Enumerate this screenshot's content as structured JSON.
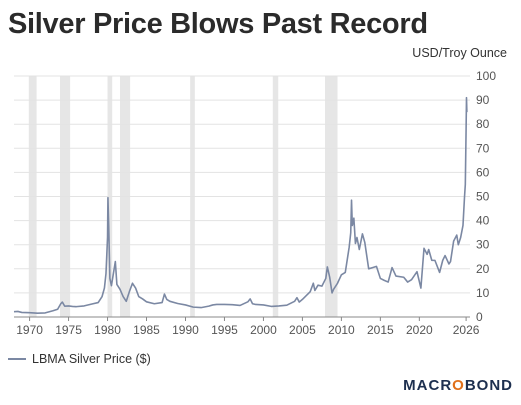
{
  "title": "Silver Price Blows Past Record",
  "unit_label": "USD/Troy Ounce",
  "legend_label": "LBMA Silver Price ($)",
  "logo": {
    "left": "MACR",
    "o": "O",
    "right": "BOND"
  },
  "colors": {
    "series": "#7b88a3",
    "recession": "#e6e6e6",
    "grid": "#e3e3e3",
    "axis": "#888888"
  },
  "chart_data": {
    "type": "line",
    "title": "Silver Price Blows Past Record",
    "ylabel": "USD/Troy Ounce",
    "xlim": [
      1968,
      2026.5
    ],
    "ylim": [
      0,
      100
    ],
    "grid": true,
    "legend_position": "bottom-left",
    "x_ticks": [
      1970,
      1975,
      1980,
      1985,
      1990,
      1995,
      2000,
      2005,
      2010,
      2015,
      2020,
      2026
    ],
    "y_ticks": [
      0,
      10,
      20,
      30,
      40,
      50,
      60,
      70,
      80,
      90,
      100
    ],
    "recession_bands": [
      [
        1969.9,
        1970.9
      ],
      [
        1973.9,
        1975.2
      ],
      [
        1980.0,
        1980.6
      ],
      [
        1981.6,
        1982.9
      ],
      [
        1990.6,
        1991.2
      ],
      [
        2001.2,
        2001.9
      ],
      [
        2007.9,
        2009.5
      ]
    ],
    "series": [
      {
        "name": "LBMA Silver Price ($)",
        "points": [
          [
            1968.0,
            2.2
          ],
          [
            1968.5,
            2.3
          ],
          [
            1969.0,
            1.9
          ],
          [
            1970.0,
            1.8
          ],
          [
            1971.0,
            1.6
          ],
          [
            1972.0,
            1.7
          ],
          [
            1973.0,
            2.6
          ],
          [
            1973.6,
            3.2
          ],
          [
            1974.0,
            5.5
          ],
          [
            1974.2,
            6.2
          ],
          [
            1974.5,
            4.5
          ],
          [
            1975.0,
            4.6
          ],
          [
            1975.5,
            4.4
          ],
          [
            1976.0,
            4.3
          ],
          [
            1977.0,
            4.6
          ],
          [
            1978.0,
            5.4
          ],
          [
            1978.8,
            6.0
          ],
          [
            1979.3,
            8.5
          ],
          [
            1979.6,
            12.0
          ],
          [
            1979.8,
            18.0
          ],
          [
            1980.0,
            33.0
          ],
          [
            1980.05,
            49.5
          ],
          [
            1980.15,
            38.0
          ],
          [
            1980.3,
            16.0
          ],
          [
            1980.5,
            13.0
          ],
          [
            1980.8,
            19.0
          ],
          [
            1981.0,
            23.0
          ],
          [
            1981.2,
            13.5
          ],
          [
            1981.6,
            11.5
          ],
          [
            1982.0,
            8.5
          ],
          [
            1982.4,
            6.5
          ],
          [
            1982.8,
            10.5
          ],
          [
            1983.2,
            14.0
          ],
          [
            1983.6,
            12.0
          ],
          [
            1984.0,
            8.5
          ],
          [
            1984.5,
            7.5
          ],
          [
            1985.0,
            6.3
          ],
          [
            1986.0,
            5.5
          ],
          [
            1987.0,
            6.0
          ],
          [
            1987.3,
            9.5
          ],
          [
            1987.6,
            7.3
          ],
          [
            1988.0,
            6.5
          ],
          [
            1989.0,
            5.6
          ],
          [
            1990.0,
            5.0
          ],
          [
            1991.0,
            4.1
          ],
          [
            1992.0,
            3.9
          ],
          [
            1993.0,
            4.5
          ],
          [
            1993.5,
            5.0
          ],
          [
            1994.0,
            5.2
          ],
          [
            1995.0,
            5.2
          ],
          [
            1996.0,
            5.1
          ],
          [
            1997.0,
            4.8
          ],
          [
            1998.0,
            6.3
          ],
          [
            1998.3,
            7.5
          ],
          [
            1998.6,
            5.5
          ],
          [
            1999.0,
            5.2
          ],
          [
            2000.0,
            5.0
          ],
          [
            2001.0,
            4.4
          ],
          [
            2002.0,
            4.6
          ],
          [
            2003.0,
            4.9
          ],
          [
            2004.0,
            6.5
          ],
          [
            2004.3,
            8.0
          ],
          [
            2004.6,
            6.2
          ],
          [
            2005.0,
            7.3
          ],
          [
            2006.0,
            10.5
          ],
          [
            2006.4,
            14.0
          ],
          [
            2006.6,
            11.0
          ],
          [
            2007.0,
            13.2
          ],
          [
            2007.5,
            12.8
          ],
          [
            2008.0,
            16.0
          ],
          [
            2008.2,
            20.8
          ],
          [
            2008.5,
            16.5
          ],
          [
            2008.8,
            10.0
          ],
          [
            2009.0,
            11.5
          ],
          [
            2009.5,
            14.0
          ],
          [
            2010.0,
            17.5
          ],
          [
            2010.5,
            18.5
          ],
          [
            2011.0,
            29.0
          ],
          [
            2011.2,
            35.0
          ],
          [
            2011.3,
            48.5
          ],
          [
            2011.4,
            38.0
          ],
          [
            2011.6,
            41.0
          ],
          [
            2011.8,
            30.5
          ],
          [
            2012.0,
            33.0
          ],
          [
            2012.3,
            28.0
          ],
          [
            2012.7,
            34.5
          ],
          [
            2013.0,
            31.0
          ],
          [
            2013.5,
            20.0
          ],
          [
            2014.0,
            20.5
          ],
          [
            2014.5,
            21.0
          ],
          [
            2015.0,
            16.0
          ],
          [
            2015.5,
            15.2
          ],
          [
            2016.0,
            14.5
          ],
          [
            2016.5,
            20.5
          ],
          [
            2017.0,
            17.0
          ],
          [
            2018.0,
            16.5
          ],
          [
            2018.5,
            14.5
          ],
          [
            2019.0,
            15.5
          ],
          [
            2019.7,
            18.8
          ],
          [
            2020.2,
            12.0
          ],
          [
            2020.6,
            28.5
          ],
          [
            2021.0,
            26.0
          ],
          [
            2021.2,
            28.0
          ],
          [
            2021.6,
            23.5
          ],
          [
            2022.0,
            23.5
          ],
          [
            2022.6,
            18.5
          ],
          [
            2023.0,
            23.5
          ],
          [
            2023.3,
            25.5
          ],
          [
            2023.8,
            22.0
          ],
          [
            2024.0,
            23.0
          ],
          [
            2024.4,
            31.5
          ],
          [
            2024.8,
            34.0
          ],
          [
            2025.0,
            30.0
          ],
          [
            2025.3,
            33.0
          ],
          [
            2025.6,
            38.0
          ],
          [
            2025.8,
            50.0
          ],
          [
            2025.9,
            55.0
          ],
          [
            2026.0,
            78.0
          ],
          [
            2026.05,
            91.0
          ],
          [
            2026.1,
            85.0
          ]
        ]
      }
    ]
  }
}
